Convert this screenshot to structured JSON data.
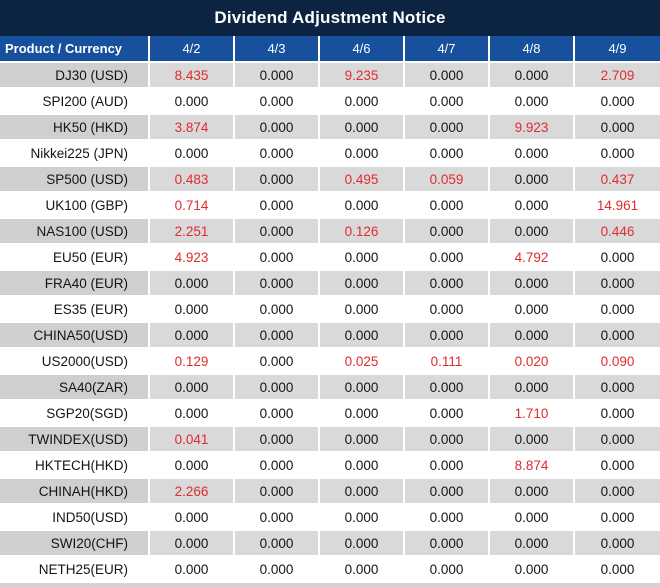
{
  "window_title": "Dividend Adjustment Notice",
  "colors": {
    "titlebar_bg": "#0d2342",
    "header_bg": "#17519e",
    "stripe_row_bg": "#d9d9d9",
    "stripe_label_bg": "#cfcfcf",
    "white_row_bg": "#ffffff",
    "gridline": "#ffffff",
    "value_zero_text": "#141414",
    "value_nonzero_text": "#e02b30",
    "header_text": "#ffffff"
  },
  "chart_data": {
    "type": "table",
    "title": "Dividend Adjustment Notice",
    "corner_label": "Product / Currency",
    "columns": [
      "4/2",
      "4/3",
      "4/6",
      "4/7",
      "4/8",
      "4/9"
    ],
    "rows": [
      {
        "product": "DJ30 (USD)",
        "values": [
          "8.435",
          "0.000",
          "9.235",
          "0.000",
          "0.000",
          "2.709"
        ]
      },
      {
        "product": "SPI200 (AUD)",
        "values": [
          "0.000",
          "0.000",
          "0.000",
          "0.000",
          "0.000",
          "0.000"
        ]
      },
      {
        "product": "HK50 (HKD)",
        "values": [
          "3.874",
          "0.000",
          "0.000",
          "0.000",
          "9.923",
          "0.000"
        ]
      },
      {
        "product": "Nikkei225 (JPN)",
        "values": [
          "0.000",
          "0.000",
          "0.000",
          "0.000",
          "0.000",
          "0.000"
        ]
      },
      {
        "product": "SP500 (USD)",
        "values": [
          "0.483",
          "0.000",
          "0.495",
          "0.059",
          "0.000",
          "0.437"
        ]
      },
      {
        "product": "UK100 (GBP)",
        "values": [
          "0.714",
          "0.000",
          "0.000",
          "0.000",
          "0.000",
          "14.961"
        ]
      },
      {
        "product": "NAS100 (USD)",
        "values": [
          "2.251",
          "0.000",
          "0.126",
          "0.000",
          "0.000",
          "0.446"
        ]
      },
      {
        "product": "EU50 (EUR)",
        "values": [
          "4.923",
          "0.000",
          "0.000",
          "0.000",
          "4.792",
          "0.000"
        ]
      },
      {
        "product": "FRA40 (EUR)",
        "values": [
          "0.000",
          "0.000",
          "0.000",
          "0.000",
          "0.000",
          "0.000"
        ]
      },
      {
        "product": "ES35 (EUR)",
        "values": [
          "0.000",
          "0.000",
          "0.000",
          "0.000",
          "0.000",
          "0.000"
        ]
      },
      {
        "product": "CHINA50(USD)",
        "values": [
          "0.000",
          "0.000",
          "0.000",
          "0.000",
          "0.000",
          "0.000"
        ]
      },
      {
        "product": "US2000(USD)",
        "values": [
          "0.129",
          "0.000",
          "0.025",
          "0.111",
          "0.020",
          "0.090"
        ]
      },
      {
        "product": "SA40(ZAR)",
        "values": [
          "0.000",
          "0.000",
          "0.000",
          "0.000",
          "0.000",
          "0.000"
        ]
      },
      {
        "product": "SGP20(SGD)",
        "values": [
          "0.000",
          "0.000",
          "0.000",
          "0.000",
          "1.710",
          "0.000"
        ]
      },
      {
        "product": "TWINDEX(USD)",
        "values": [
          "0.041",
          "0.000",
          "0.000",
          "0.000",
          "0.000",
          "0.000"
        ]
      },
      {
        "product": "HKTECH(HKD)",
        "values": [
          "0.000",
          "0.000",
          "0.000",
          "0.000",
          "8.874",
          "0.000"
        ]
      },
      {
        "product": "CHINAH(HKD)",
        "values": [
          "2.266",
          "0.000",
          "0.000",
          "0.000",
          "0.000",
          "0.000"
        ]
      },
      {
        "product": "IND50(USD)",
        "values": [
          "0.000",
          "0.000",
          "0.000",
          "0.000",
          "0.000",
          "0.000"
        ]
      },
      {
        "product": "SWI20(CHF)",
        "values": [
          "0.000",
          "0.000",
          "0.000",
          "0.000",
          "0.000",
          "0.000"
        ]
      },
      {
        "product": "NETH25(EUR)",
        "values": [
          "0.000",
          "0.000",
          "0.000",
          "0.000",
          "0.000",
          "0.000"
        ]
      }
    ],
    "value_color_rule": "zero values black, non-zero values red",
    "stripe_rule": "rows alternate gray/white starting with gray"
  }
}
